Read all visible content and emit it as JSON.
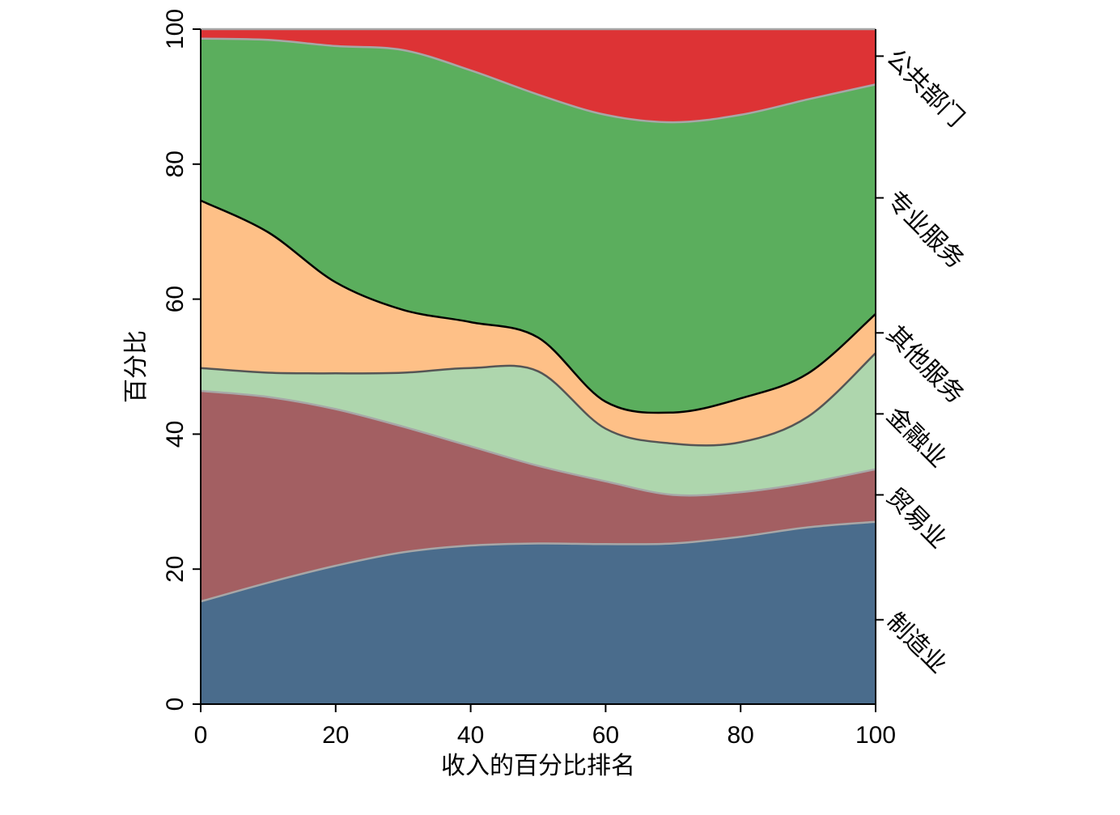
{
  "chart_data": {
    "type": "area",
    "stacked": true,
    "xlabel": "收入的百分比排名",
    "ylabel": "百分比",
    "xlim": [
      0,
      100
    ],
    "ylim": [
      0,
      100
    ],
    "x_ticks": [
      "0",
      "20",
      "40",
      "60",
      "80",
      "100"
    ],
    "y_ticks": [
      "0",
      "20",
      "40",
      "60",
      "80",
      "100"
    ],
    "grid": false,
    "legend": "right-side labels",
    "x": [
      0,
      10,
      20,
      30,
      40,
      50,
      60,
      70,
      80,
      90,
      100
    ],
    "series": [
      {
        "name": "制造业",
        "color": "#4a6c8c",
        "values": [
          15.2,
          18.0,
          20.5,
          22.5,
          23.5,
          23.8,
          23.7,
          23.8,
          24.8,
          26.2,
          27.0
        ]
      },
      {
        "name": "贸易业",
        "color": "#a35f62",
        "values": [
          31.2,
          27.5,
          23.2,
          18.6,
          14.7,
          11.5,
          9.3,
          7.2,
          6.6,
          6.6,
          7.8
        ]
      },
      {
        "name": "金融业",
        "color": "#aed6ad",
        "values": [
          3.4,
          3.6,
          5.3,
          8.0,
          11.6,
          14.0,
          7.8,
          7.6,
          7.4,
          9.8,
          17.2
        ]
      },
      {
        "name": "其他服务",
        "color": "#fec087",
        "values": [
          24.8,
          20.8,
          13.5,
          9.3,
          6.8,
          5.0,
          4.0,
          4.6,
          6.5,
          6.4,
          5.8
        ]
      },
      {
        "name": "专业服务",
        "color": "#5bae5d",
        "values": [
          24.0,
          28.5,
          35.0,
          38.5,
          37.3,
          36.0,
          42.5,
          43.0,
          42.0,
          40.6,
          34.0
        ]
      },
      {
        "name": "公共部门",
        "color": "#dd3335",
        "values": [
          1.4,
          1.6,
          2.5,
          3.1,
          6.1,
          9.7,
          12.7,
          13.8,
          12.7,
          10.4,
          8.2
        ]
      }
    ],
    "right_axis_tick_values": [
      12.5,
      31,
      43,
      55,
      75,
      96
    ]
  }
}
